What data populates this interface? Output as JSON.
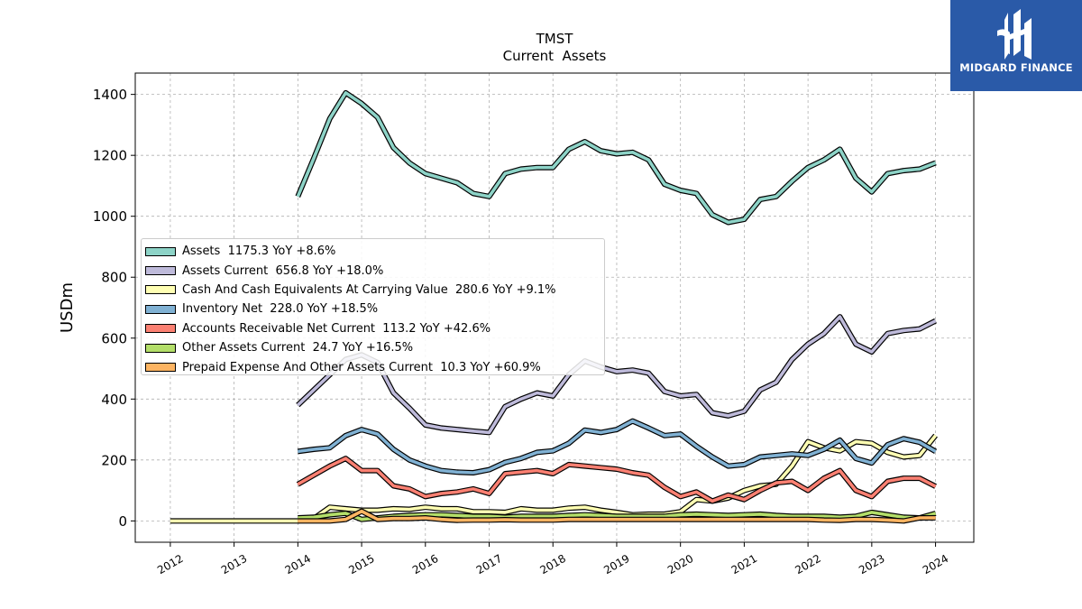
{
  "brand": {
    "name": "MIDGARD FINANCE",
    "icon": "midgard-logo-icon",
    "color": "#2a5aa8"
  },
  "chart_data": {
    "type": "line",
    "title": "TMST",
    "subtitle": "Current  Assets",
    "ylabel": "USDm",
    "xlabel": "",
    "xlim": [
      2011.45,
      2024.6
    ],
    "ylim": [
      -70,
      1470
    ],
    "yticks": [
      0,
      200,
      400,
      600,
      800,
      1000,
      1200,
      1400
    ],
    "xticks": [
      "2012",
      "2013",
      "2014",
      "2015",
      "2016",
      "2017",
      "2018",
      "2019",
      "2020",
      "2021",
      "2022",
      "2023",
      "2024"
    ],
    "grid": true,
    "legend_position": "center-left",
    "series": [
      {
        "name": "Assets",
        "legend": "Assets  1175.3 YoY +8.6%",
        "color": "#8dd3c7",
        "points": [
          [
            2014.0,
            1065
          ],
          [
            2014.25,
            1190
          ],
          [
            2014.5,
            1320
          ],
          [
            2014.75,
            1405
          ],
          [
            2015.0,
            1370
          ],
          [
            2015.25,
            1325
          ],
          [
            2015.5,
            1225
          ],
          [
            2015.75,
            1175
          ],
          [
            2016.0,
            1140
          ],
          [
            2016.25,
            1125
          ],
          [
            2016.5,
            1110
          ],
          [
            2016.75,
            1075
          ],
          [
            2017.0,
            1065
          ],
          [
            2017.25,
            1140
          ],
          [
            2017.5,
            1155
          ],
          [
            2017.75,
            1160
          ],
          [
            2018.0,
            1160
          ],
          [
            2018.25,
            1220
          ],
          [
            2018.5,
            1245
          ],
          [
            2018.75,
            1215
          ],
          [
            2019.0,
            1205
          ],
          [
            2019.25,
            1210
          ],
          [
            2019.5,
            1185
          ],
          [
            2019.75,
            1105
          ],
          [
            2020.0,
            1085
          ],
          [
            2020.25,
            1075
          ],
          [
            2020.5,
            1005
          ],
          [
            2020.75,
            980
          ],
          [
            2021.0,
            990
          ],
          [
            2021.25,
            1055
          ],
          [
            2021.5,
            1065
          ],
          [
            2021.75,
            1115
          ],
          [
            2022.0,
            1160
          ],
          [
            2022.25,
            1185
          ],
          [
            2022.5,
            1220
          ],
          [
            2022.75,
            1125
          ],
          [
            2023.0,
            1080
          ],
          [
            2023.25,
            1140
          ],
          [
            2023.5,
            1150
          ],
          [
            2023.75,
            1155
          ],
          [
            2024.0,
            1175.3
          ]
        ]
      },
      {
        "name": "Assets Current",
        "legend": "Assets Current  656.8 YoY +18.0%",
        "color": "#bebada",
        "points": [
          [
            2014.0,
            380
          ],
          [
            2014.25,
            430
          ],
          [
            2014.5,
            480
          ],
          [
            2014.75,
            530
          ],
          [
            2015.0,
            545
          ],
          [
            2015.25,
            520
          ],
          [
            2015.5,
            420
          ],
          [
            2015.75,
            370
          ],
          [
            2016.0,
            315
          ],
          [
            2016.25,
            305
          ],
          [
            2016.5,
            300
          ],
          [
            2016.75,
            295
          ],
          [
            2017.0,
            290
          ],
          [
            2017.25,
            375
          ],
          [
            2017.5,
            400
          ],
          [
            2017.75,
            420
          ],
          [
            2018.0,
            410
          ],
          [
            2018.25,
            480
          ],
          [
            2018.5,
            525
          ],
          [
            2018.75,
            505
          ],
          [
            2019.0,
            490
          ],
          [
            2019.25,
            495
          ],
          [
            2019.5,
            485
          ],
          [
            2019.75,
            425
          ],
          [
            2020.0,
            410
          ],
          [
            2020.25,
            415
          ],
          [
            2020.5,
            355
          ],
          [
            2020.75,
            345
          ],
          [
            2021.0,
            360
          ],
          [
            2021.25,
            430
          ],
          [
            2021.5,
            455
          ],
          [
            2021.75,
            530
          ],
          [
            2022.0,
            580
          ],
          [
            2022.25,
            615
          ],
          [
            2022.5,
            670
          ],
          [
            2022.75,
            580
          ],
          [
            2023.0,
            555
          ],
          [
            2023.25,
            615
          ],
          [
            2023.5,
            625
          ],
          [
            2023.75,
            630
          ],
          [
            2024.0,
            656.8
          ]
        ]
      },
      {
        "name": "Cash And Cash Equivalents At Carrying Value",
        "legend": "Cash And Cash Equivalents At Carrying Value  280.6 YoY +9.1%",
        "color": "#ffffb3",
        "points": [
          [
            2012.0,
            0
          ],
          [
            2013.0,
            0
          ],
          [
            2014.0,
            0
          ],
          [
            2014.25,
            8
          ],
          [
            2014.5,
            45
          ],
          [
            2014.75,
            40
          ],
          [
            2015.0,
            35
          ],
          [
            2015.25,
            35
          ],
          [
            2015.5,
            40
          ],
          [
            2015.75,
            38
          ],
          [
            2016.0,
            45
          ],
          [
            2016.25,
            40
          ],
          [
            2016.5,
            40
          ],
          [
            2016.75,
            30
          ],
          [
            2017.0,
            30
          ],
          [
            2017.25,
            28
          ],
          [
            2017.5,
            40
          ],
          [
            2017.75,
            35
          ],
          [
            2018.0,
            35
          ],
          [
            2018.25,
            42
          ],
          [
            2018.5,
            45
          ],
          [
            2018.75,
            35
          ],
          [
            2019.0,
            28
          ],
          [
            2019.25,
            20
          ],
          [
            2019.5,
            22
          ],
          [
            2019.75,
            22
          ],
          [
            2020.0,
            30
          ],
          [
            2020.25,
            70
          ],
          [
            2020.5,
            65
          ],
          [
            2020.75,
            75
          ],
          [
            2021.0,
            100
          ],
          [
            2021.25,
            115
          ],
          [
            2021.5,
            120
          ],
          [
            2021.75,
            180
          ],
          [
            2022.0,
            260
          ],
          [
            2022.25,
            240
          ],
          [
            2022.5,
            230
          ],
          [
            2022.75,
            260
          ],
          [
            2023.0,
            255
          ],
          [
            2023.25,
            225
          ],
          [
            2023.5,
            210
          ],
          [
            2023.75,
            215
          ],
          [
            2024.0,
            280.6
          ]
        ]
      },
      {
        "name": "Inventory Net",
        "legend": "Inventory Net  228.0 YoY +18.5%",
        "color": "#80b1d3",
        "points": [
          [
            2014.0,
            228
          ],
          [
            2014.25,
            235
          ],
          [
            2014.5,
            240
          ],
          [
            2014.75,
            280
          ],
          [
            2015.0,
            300
          ],
          [
            2015.25,
            285
          ],
          [
            2015.5,
            235
          ],
          [
            2015.75,
            200
          ],
          [
            2016.0,
            180
          ],
          [
            2016.25,
            165
          ],
          [
            2016.5,
            160
          ],
          [
            2016.75,
            158
          ],
          [
            2017.0,
            168
          ],
          [
            2017.25,
            192
          ],
          [
            2017.5,
            205
          ],
          [
            2017.75,
            225
          ],
          [
            2018.0,
            230
          ],
          [
            2018.25,
            255
          ],
          [
            2018.5,
            298
          ],
          [
            2018.75,
            290
          ],
          [
            2019.0,
            300
          ],
          [
            2019.25,
            328
          ],
          [
            2019.5,
            305
          ],
          [
            2019.75,
            280
          ],
          [
            2020.0,
            285
          ],
          [
            2020.25,
            245
          ],
          [
            2020.5,
            210
          ],
          [
            2020.75,
            180
          ],
          [
            2021.0,
            185
          ],
          [
            2021.25,
            210
          ],
          [
            2021.5,
            215
          ],
          [
            2021.75,
            220
          ],
          [
            2022.0,
            215
          ],
          [
            2022.25,
            235
          ],
          [
            2022.5,
            265
          ],
          [
            2022.75,
            205
          ],
          [
            2023.0,
            190
          ],
          [
            2023.25,
            250
          ],
          [
            2023.5,
            270
          ],
          [
            2023.75,
            258
          ],
          [
            2024.0,
            228
          ]
        ]
      },
      {
        "name": "Accounts Receivable Net Current",
        "legend": "Accounts Receivable Net Current  113.2 YoY +42.6%",
        "color": "#fb8072",
        "points": [
          [
            2014.0,
            120
          ],
          [
            2014.25,
            150
          ],
          [
            2014.5,
            180
          ],
          [
            2014.75,
            205
          ],
          [
            2015.0,
            165
          ],
          [
            2015.25,
            165
          ],
          [
            2015.5,
            115
          ],
          [
            2015.75,
            105
          ],
          [
            2016.0,
            80
          ],
          [
            2016.25,
            90
          ],
          [
            2016.5,
            95
          ],
          [
            2016.75,
            105
          ],
          [
            2017.0,
            90
          ],
          [
            2017.25,
            155
          ],
          [
            2017.5,
            160
          ],
          [
            2017.75,
            165
          ],
          [
            2018.0,
            155
          ],
          [
            2018.25,
            185
          ],
          [
            2018.5,
            180
          ],
          [
            2018.75,
            175
          ],
          [
            2019.0,
            170
          ],
          [
            2019.25,
            158
          ],
          [
            2019.5,
            150
          ],
          [
            2019.75,
            110
          ],
          [
            2020.0,
            80
          ],
          [
            2020.25,
            95
          ],
          [
            2020.5,
            65
          ],
          [
            2020.75,
            85
          ],
          [
            2021.0,
            70
          ],
          [
            2021.25,
            100
          ],
          [
            2021.5,
            125
          ],
          [
            2021.75,
            130
          ],
          [
            2022.0,
            100
          ],
          [
            2022.25,
            140
          ],
          [
            2022.5,
            165
          ],
          [
            2022.75,
            100
          ],
          [
            2023.0,
            80
          ],
          [
            2023.25,
            130
          ],
          [
            2023.5,
            140
          ],
          [
            2023.75,
            140
          ],
          [
            2024.0,
            113.2
          ]
        ]
      },
      {
        "name": "Other Assets Current",
        "legend": "Other Assets Current  24.7 YoY +16.5%",
        "color": "#b3de69",
        "points": [
          [
            2014.0,
            10
          ],
          [
            2014.25,
            12
          ],
          [
            2014.5,
            20
          ],
          [
            2014.75,
            25
          ],
          [
            2015.0,
            5
          ],
          [
            2015.25,
            10
          ],
          [
            2015.5,
            15
          ],
          [
            2015.75,
            18
          ],
          [
            2016.0,
            20
          ],
          [
            2016.25,
            20
          ],
          [
            2016.5,
            18
          ],
          [
            2016.75,
            15
          ],
          [
            2017.0,
            15
          ],
          [
            2017.25,
            12
          ],
          [
            2017.5,
            15
          ],
          [
            2017.75,
            15
          ],
          [
            2018.0,
            15
          ],
          [
            2018.25,
            18
          ],
          [
            2018.5,
            20
          ],
          [
            2018.75,
            18
          ],
          [
            2019.0,
            15
          ],
          [
            2019.25,
            15
          ],
          [
            2019.5,
            15
          ],
          [
            2019.75,
            15
          ],
          [
            2020.0,
            20
          ],
          [
            2020.25,
            22
          ],
          [
            2020.5,
            20
          ],
          [
            2020.75,
            18
          ],
          [
            2021.0,
            20
          ],
          [
            2021.25,
            22
          ],
          [
            2021.5,
            18
          ],
          [
            2021.75,
            15
          ],
          [
            2022.0,
            15
          ],
          [
            2022.25,
            15
          ],
          [
            2022.5,
            12
          ],
          [
            2022.75,
            15
          ],
          [
            2023.0,
            28
          ],
          [
            2023.25,
            20
          ],
          [
            2023.5,
            12
          ],
          [
            2023.75,
            10
          ],
          [
            2024.0,
            24.7
          ]
        ]
      },
      {
        "name": "Prepaid Expense And Other Assets Current",
        "legend": "Prepaid Expense And Other Assets Current  10.3 YoY +60.9%",
        "color": "#fdb462",
        "points": [
          [
            2014.0,
            0
          ],
          [
            2014.25,
            0
          ],
          [
            2014.5,
            0
          ],
          [
            2014.75,
            5
          ],
          [
            2015.0,
            32
          ],
          [
            2015.25,
            5
          ],
          [
            2015.5,
            8
          ],
          [
            2015.75,
            8
          ],
          [
            2016.0,
            10
          ],
          [
            2016.25,
            5
          ],
          [
            2016.5,
            2
          ],
          [
            2016.75,
            3
          ],
          [
            2017.0,
            3
          ],
          [
            2017.25,
            4
          ],
          [
            2017.5,
            3
          ],
          [
            2017.75,
            3
          ],
          [
            2018.0,
            3
          ],
          [
            2018.25,
            5
          ],
          [
            2018.5,
            5
          ],
          [
            2018.75,
            5
          ],
          [
            2019.0,
            5
          ],
          [
            2019.25,
            5
          ],
          [
            2019.5,
            5
          ],
          [
            2019.75,
            5
          ],
          [
            2020.0,
            5
          ],
          [
            2020.25,
            5
          ],
          [
            2020.5,
            5
          ],
          [
            2020.75,
            5
          ],
          [
            2021.0,
            5
          ],
          [
            2021.25,
            5
          ],
          [
            2021.5,
            5
          ],
          [
            2021.75,
            5
          ],
          [
            2022.0,
            5
          ],
          [
            2022.25,
            3
          ],
          [
            2022.5,
            2
          ],
          [
            2022.75,
            5
          ],
          [
            2023.0,
            5
          ],
          [
            2023.25,
            3
          ],
          [
            2023.5,
            0
          ],
          [
            2023.75,
            10
          ],
          [
            2024.0,
            10.3
          ]
        ]
      }
    ]
  }
}
